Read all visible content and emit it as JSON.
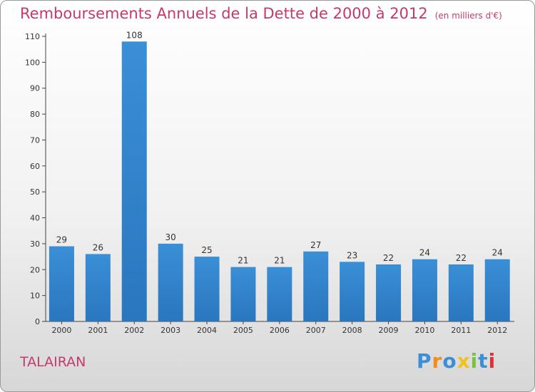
{
  "chart_data": {
    "type": "bar",
    "title": "Remboursements Annuels de la Dette de 2000 à 2012",
    "unit": "(en milliers d'€)",
    "categories": [
      "2000",
      "2001",
      "2002",
      "2003",
      "2004",
      "2005",
      "2006",
      "2007",
      "2008",
      "2009",
      "2010",
      "2011",
      "2012"
    ],
    "values": [
      29,
      26,
      108,
      30,
      25,
      21,
      21,
      27,
      23,
      22,
      24,
      22,
      24
    ],
    "ylim": [
      0,
      110
    ],
    "yticks": [
      0,
      10,
      20,
      30,
      40,
      50,
      60,
      70,
      80,
      90,
      100,
      110
    ],
    "grid": false,
    "bar_color": "#3a8fd6",
    "bar_color_dark": "#2a76bf",
    "label_color": "#c33a6d"
  },
  "footer": {
    "town": "TALAIRAN",
    "brand": "Proxiti",
    "brand_colors": [
      "#3a8fd6",
      "#f28c1a",
      "#3a8fd6",
      "#f2c21a",
      "#7cc142",
      "#3a8fd6",
      "#e0303a"
    ]
  }
}
